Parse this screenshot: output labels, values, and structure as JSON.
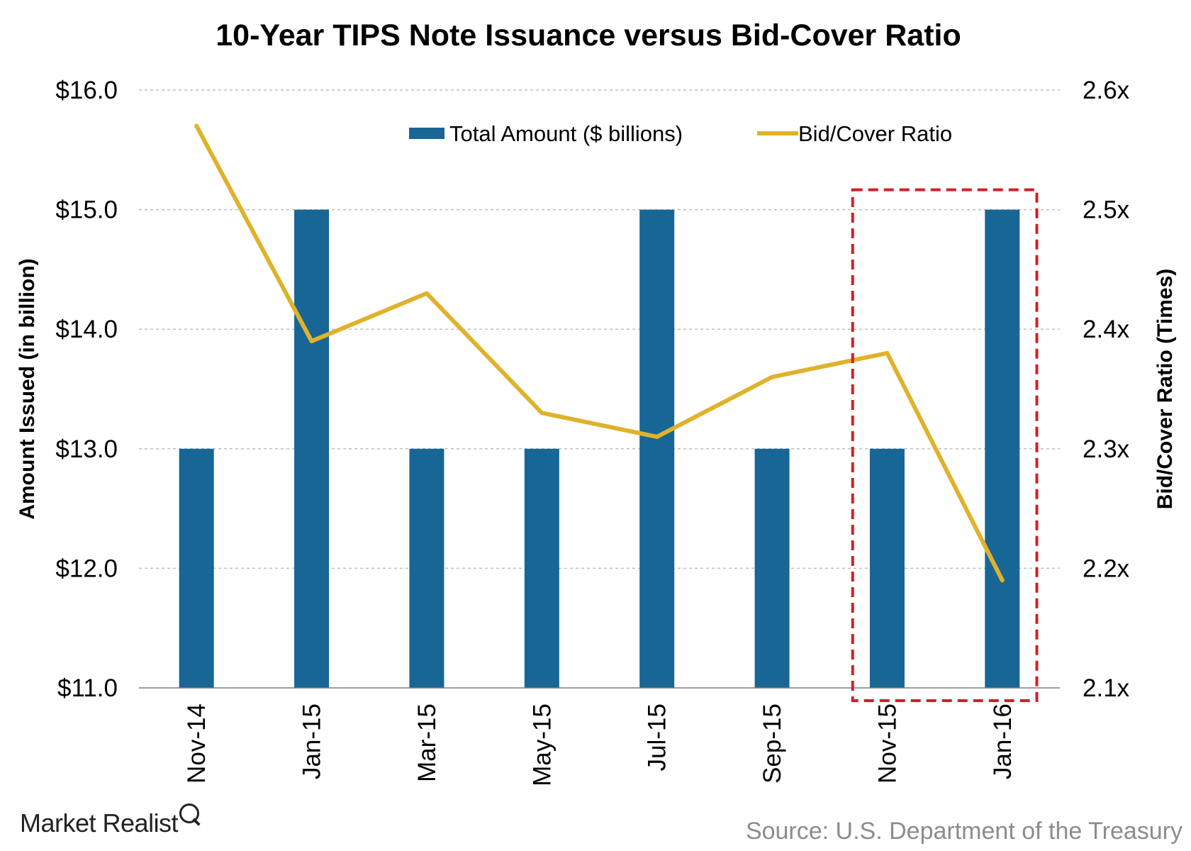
{
  "title": "10-Year TIPS Note Issuance versus Bid-Cover Ratio",
  "brand": "Market Realist",
  "source": "Source: U.S. Department of the Treasury",
  "colors": {
    "bar": "#176695",
    "line": "#e0b22b",
    "highlight": "#d31f26",
    "grid": "#bfbfbf"
  },
  "chart_data": {
    "type": "bar",
    "categories": [
      "Nov-14",
      "Jan-15",
      "Mar-15",
      "May-15",
      "Jul-15",
      "Sep-15",
      "Nov-15",
      "Jan-16"
    ],
    "series": [
      {
        "name": "Total Amount ($ billions)",
        "type": "bar",
        "axis": "left",
        "values": [
          13,
          15,
          13,
          13,
          15,
          13,
          13,
          15
        ]
      },
      {
        "name": "Bid/Cover Ratio",
        "type": "line",
        "axis": "right",
        "values": [
          2.57,
          2.39,
          2.43,
          2.33,
          2.31,
          2.36,
          2.38,
          2.19
        ]
      }
    ],
    "ylabel": "Amount Issued (in billion)",
    "y2label": "Bid/Cover Ratio (Times)",
    "ylim": [
      11,
      16
    ],
    "y2lim": [
      2.1,
      2.6
    ],
    "yticks": [
      "$11.0",
      "$12.0",
      "$13.0",
      "$14.0",
      "$15.0",
      "$16.0"
    ],
    "y2ticks": [
      "2.1x",
      "2.2x",
      "2.3x",
      "2.4x",
      "2.5x",
      "2.6x"
    ],
    "grid": true,
    "legend_position": "top-center",
    "highlight_categories": [
      "Nov-15",
      "Jan-16"
    ]
  }
}
